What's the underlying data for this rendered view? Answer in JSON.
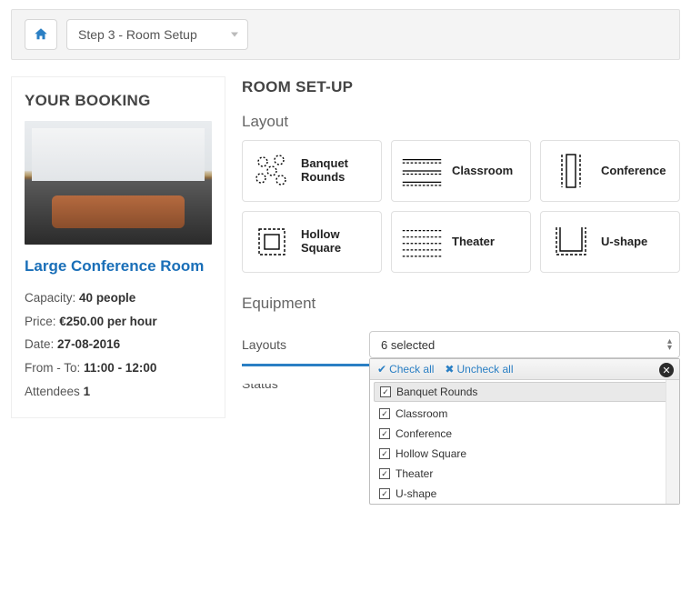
{
  "topbar": {
    "step_label": "Step 3 - Room Setup"
  },
  "booking": {
    "heading": "YOUR BOOKING",
    "room_title": "Large Conference Room",
    "capacity_label": "Capacity:",
    "capacity_value": "40 people",
    "price_label": "Price:",
    "price_value": "€250.00 per hour",
    "date_label": "Date:",
    "date_value": "27-08-2016",
    "time_label": "From - To:",
    "time_value": "11:00 - 12:00",
    "attendees_label": "Attendees",
    "attendees_value": "1"
  },
  "setup": {
    "heading": "ROOM SET-UP",
    "layout_label": "Layout",
    "equipment_label": "Equipment",
    "layouts": [
      {
        "label": "Banquet Rounds"
      },
      {
        "label": "Classroom"
      },
      {
        "label": "Conference"
      },
      {
        "label": "Hollow Square"
      },
      {
        "label": "Theater"
      },
      {
        "label": "U-shape"
      }
    ]
  },
  "filter": {
    "layouts_label": "Layouts",
    "status_label": "Status",
    "selected_text": "6 selected",
    "check_all": "Check all",
    "uncheck_all": "Uncheck all",
    "options": [
      {
        "label": "Banquet Rounds",
        "checked": true,
        "hl": true
      },
      {
        "label": "Classroom",
        "checked": true
      },
      {
        "label": "Conference",
        "checked": true
      },
      {
        "label": "Hollow Square",
        "checked": true
      },
      {
        "label": "Theater",
        "checked": true
      },
      {
        "label": "U-shape",
        "checked": true
      }
    ]
  },
  "colors": {
    "accent": "#2a7fc4",
    "link": "#1a6fb8",
    "border": "#e0e0e0",
    "text": "#333"
  }
}
